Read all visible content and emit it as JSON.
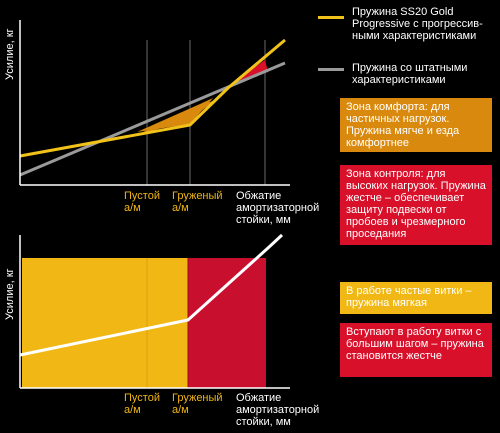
{
  "legend": {
    "progressive": {
      "label": "Пружина SS20 Gold Progressive с прогрессив-ными характеристиками",
      "color": "#f0c21a"
    },
    "standard": {
      "label": "Пружина со штатными характеристиками",
      "color": "#9a9a9a"
    }
  },
  "colors": {
    "comfort_zone": "#d98a0e",
    "control_zone": "#d8102a",
    "soft_area": "#f1b815",
    "stiff_area": "#c8102e",
    "axis": "#ffffff",
    "guide": "#6a6a6a"
  },
  "top_chart": {
    "y_axis_label": "Усилие, кг",
    "x_labels": {
      "empty": "Пустой а/м",
      "loaded": "Груженый а/м",
      "compression": "Обжатие амортизаторной стойки, мм"
    }
  },
  "bottom_chart": {
    "y_axis_label": "Усилие, кг",
    "x_labels": {
      "empty": "Пустой а/м",
      "loaded": "Груженый а/м",
      "compression": "Обжатие амортизаторной стойки, мм"
    }
  },
  "boxes": {
    "comfort": "Зона комфорта: для частичных нагрузок. Пружина мягче и езда комфортнее",
    "control": "Зона контроля: для высоких нагрузок. Пружина жестче – обеспечивает защиту подвески от пробоев и чрезмерного проседания",
    "soft_coils": "В работе частые витки – пружина мягкая",
    "stiff_coils": "Вступают в работу витки с большим шагом – пружина становится жестче"
  }
}
